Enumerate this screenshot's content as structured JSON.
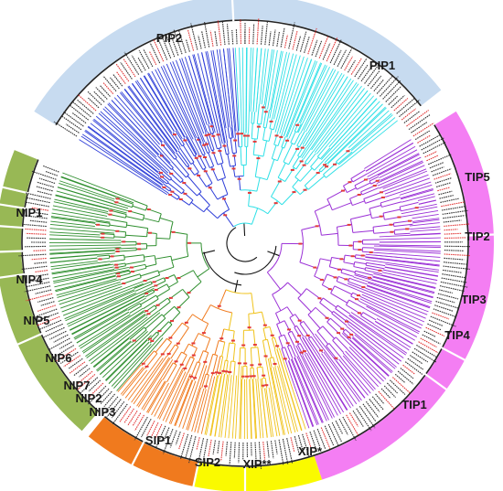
{
  "figure": {
    "type": "circular-phylogenetic-tree",
    "title": "",
    "groups": [
      {
        "key": "pip",
        "color": "#c7dbf0",
        "labels": [
          "PIP2",
          "PIP1"
        ]
      },
      {
        "key": "tip",
        "color": "#f47ef3",
        "labels": [
          "TIP5",
          "TIP2",
          "TIP3",
          "TIP4",
          "TIP1"
        ]
      },
      {
        "key": "xip",
        "color": "#fafa00",
        "labels": [
          "XIP*",
          "XIP**"
        ]
      },
      {
        "key": "sip",
        "color": "#f07a1e",
        "labels": [
          "SIP1",
          "SIP2"
        ]
      },
      {
        "key": "nip",
        "color": "#98b855",
        "labels": [
          "NIP3",
          "NIP2",
          "NIP7",
          "NIP6",
          "NIP5",
          "NIP4",
          "NIP1"
        ]
      }
    ],
    "clade_colors": {
      "pip2": "#2f3fd8",
      "pip1": "#2ee0e6",
      "tip": "#9a2fd6",
      "xip": "#f0c21a",
      "sip": "#f07a1e",
      "nip": "#2f8f2f",
      "root": "#111111",
      "bootstrap": "#e23a3a"
    },
    "leaf_label_colors": [
      "#333333",
      "#e23a3a"
    ]
  }
}
